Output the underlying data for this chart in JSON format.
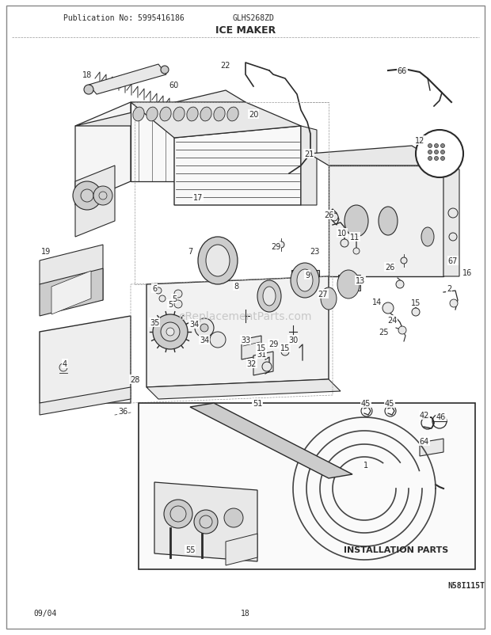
{
  "title": "ICE MAKER",
  "pub_label": "Publication No: 5995416186",
  "model": "GLHS268ZD",
  "diagram_code": "N58I115T",
  "date": "09/04",
  "page": "18",
  "watermark": "eReplacementParts.com",
  "bg": "#ffffff",
  "fg": "#2a2a2a",
  "gray1": "#cccccc",
  "gray2": "#e8e8e8",
  "gray3": "#aaaaaa",
  "fig_w": 6.2,
  "fig_h": 8.03,
  "dpi": 100
}
